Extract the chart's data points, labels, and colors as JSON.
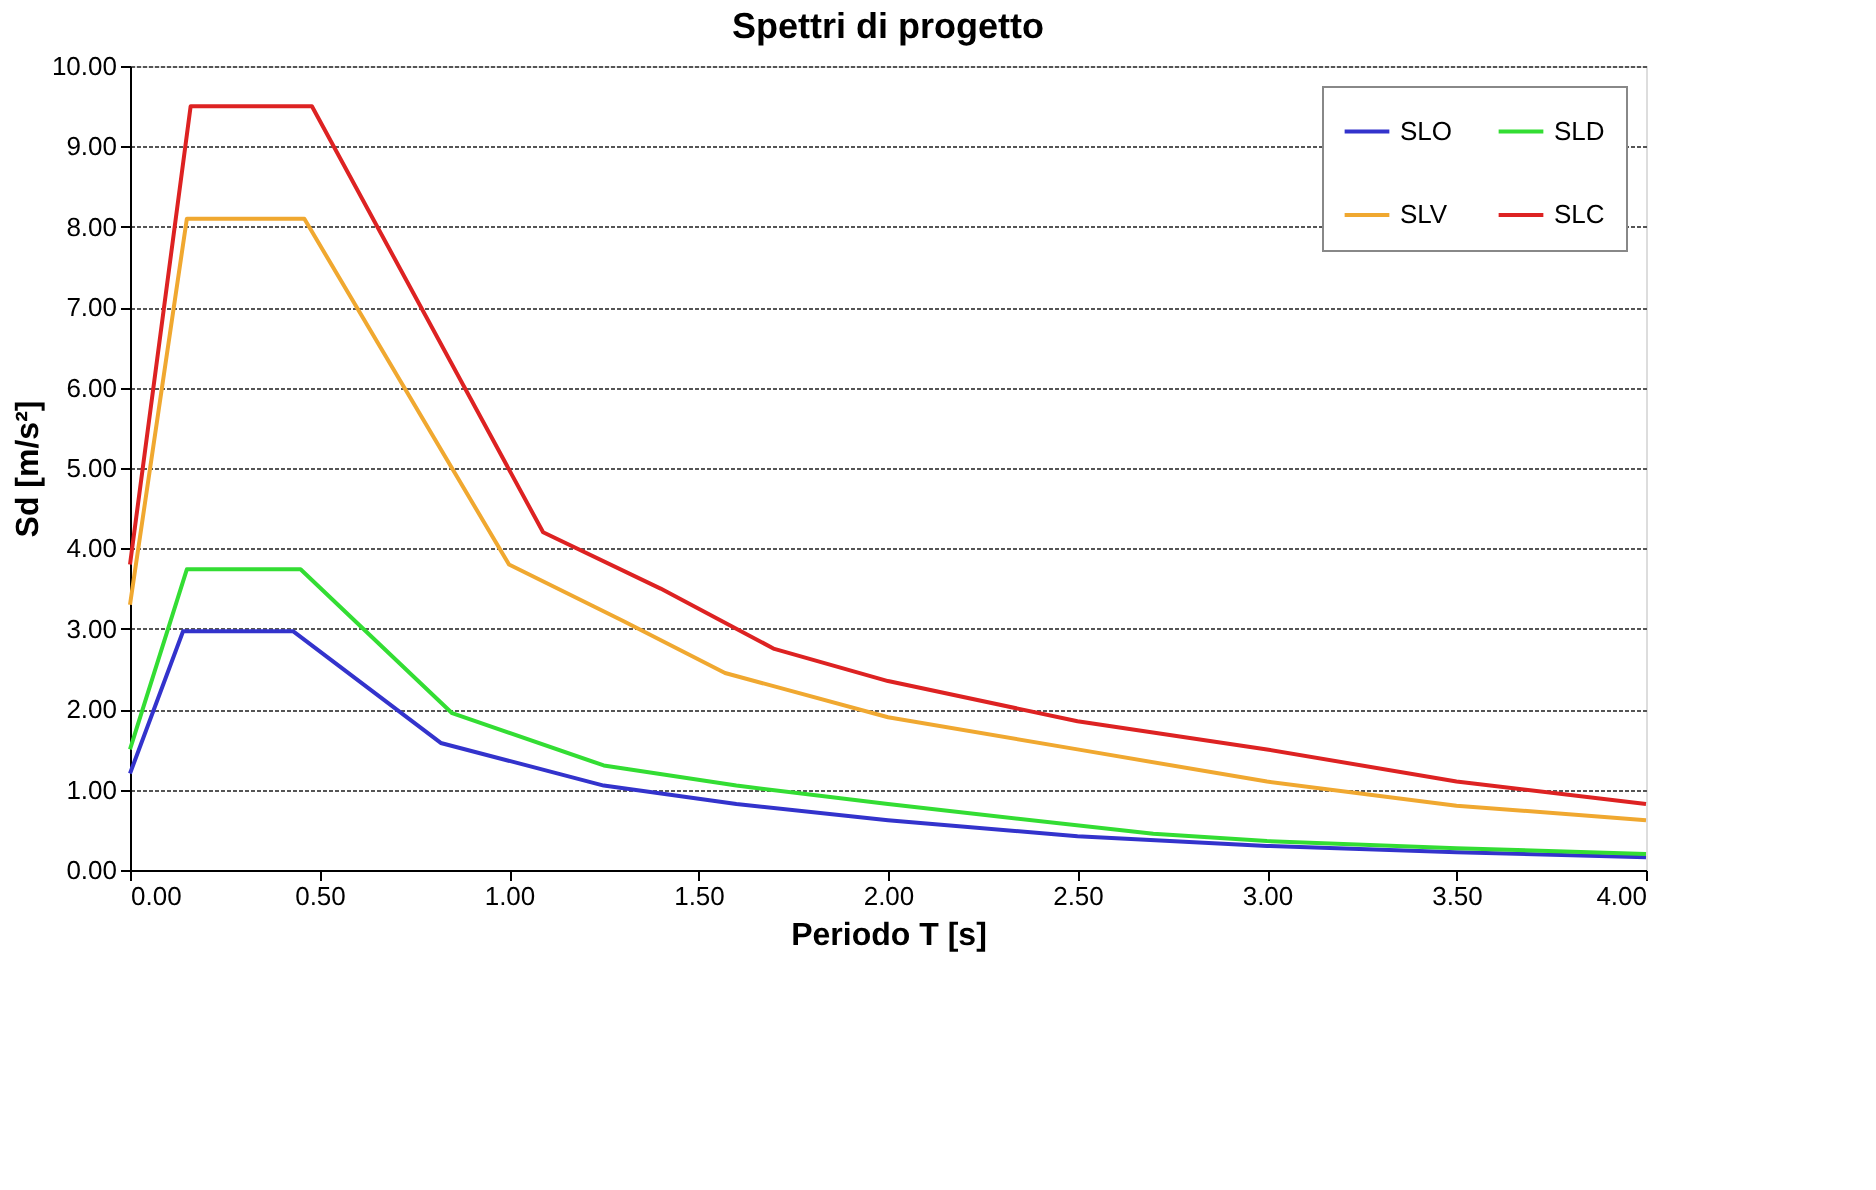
{
  "chart_data": {
    "type": "line",
    "title": "Spettri di progetto",
    "xlabel": "Periodo T [s]",
    "ylabel": "Sd [m/s²]",
    "xlim": [
      0,
      4
    ],
    "ylim": [
      0,
      10
    ],
    "xticks": [
      {
        "value": 0,
        "label": "0.00"
      },
      {
        "value": 0.5,
        "label": "0.50"
      },
      {
        "value": 1,
        "label": "1.00"
      },
      {
        "value": 1.5,
        "label": "1.50"
      },
      {
        "value": 2,
        "label": "2.00"
      },
      {
        "value": 2.5,
        "label": "2.50"
      },
      {
        "value": 3,
        "label": "3.00"
      },
      {
        "value": 3.5,
        "label": "3.50"
      },
      {
        "value": 4,
        "label": "4.00"
      }
    ],
    "yticks": [
      {
        "value": 0,
        "label": "0.00"
      },
      {
        "value": 1,
        "label": "1.00"
      },
      {
        "value": 2,
        "label": "2.00"
      },
      {
        "value": 3,
        "label": "3.00"
      },
      {
        "value": 4,
        "label": "4.00"
      },
      {
        "value": 5,
        "label": "5.00"
      },
      {
        "value": 6,
        "label": "6.00"
      },
      {
        "value": 7,
        "label": "7.00"
      },
      {
        "value": 8,
        "label": "8.00"
      },
      {
        "value": 9,
        "label": "9.00"
      },
      {
        "value": 10,
        "label": "10.00"
      }
    ],
    "grid": "y",
    "legend": "top right",
    "marker": "none",
    "line_style": "solid",
    "series": [
      {
        "name": "SLO",
        "color": "#3333cc",
        "x": [
          0,
          0.14,
          0.43,
          0.82,
          1.25,
          1.6,
          2.0,
          2.5,
          3.0,
          3.5,
          4.0
        ],
        "values": [
          1.2,
          2.97,
          2.97,
          1.58,
          1.05,
          0.82,
          0.62,
          0.42,
          0.3,
          0.22,
          0.16
        ]
      },
      {
        "name": "SLD",
        "color": "#33dd33",
        "x": [
          0,
          0.15,
          0.45,
          0.85,
          1.25,
          1.6,
          2.0,
          2.7,
          3.0,
          3.5,
          4.0
        ],
        "values": [
          1.5,
          3.74,
          3.74,
          1.95,
          1.3,
          1.05,
          0.82,
          0.45,
          0.36,
          0.27,
          0.2
        ]
      },
      {
        "name": "SLV",
        "color": "#f0a830",
        "x": [
          0,
          0.15,
          0.46,
          1.0,
          1.3,
          1.57,
          2.0,
          2.5,
          3.0,
          3.5,
          4.0
        ],
        "values": [
          3.3,
          8.1,
          8.1,
          3.8,
          3.1,
          2.45,
          1.9,
          1.5,
          1.1,
          0.8,
          0.62
        ]
      },
      {
        "name": "SLC",
        "color": "#dd2222",
        "x": [
          0,
          0.16,
          0.48,
          1.09,
          1.4,
          1.7,
          2.0,
          2.5,
          3.0,
          3.5,
          4.0
        ],
        "values": [
          3.8,
          9.5,
          9.5,
          4.2,
          3.5,
          2.75,
          2.35,
          1.85,
          1.5,
          1.1,
          0.82
        ]
      }
    ]
  }
}
